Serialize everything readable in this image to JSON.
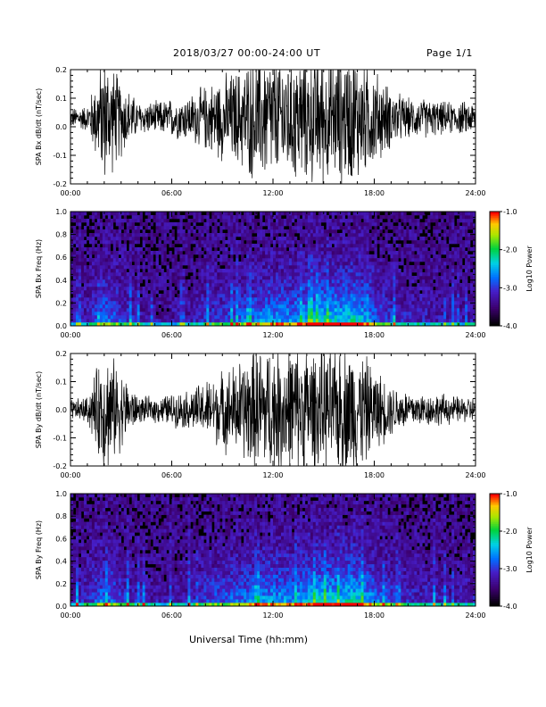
{
  "header": {
    "title": "2018/03/27  00:00-24:00 UT",
    "page": "Page 1/1"
  },
  "xlabel": "Universal Time (hh:mm)",
  "chart_data": [
    {
      "type": "line",
      "ylabel": "SPA Bx dB/dt (nT/sec)",
      "ylim": [
        -0.2,
        0.2
      ],
      "xlim": [
        "00:00",
        "24:00"
      ],
      "x_ticks": [
        "00:00",
        "06:00",
        "12:00",
        "18:00",
        "24:00"
      ],
      "y_ticks": [
        "0.2",
        "0.1",
        "0.0",
        "-0.1",
        "-0.2"
      ],
      "y_tick_values": [
        0.2,
        0.1,
        0.0,
        -0.1,
        -0.2
      ],
      "series": [
        {
          "hours": [
            0,
            1,
            2,
            3,
            4,
            5,
            6,
            7,
            8,
            9,
            10,
            11,
            12,
            13,
            14,
            15,
            16,
            17,
            18,
            19,
            20,
            21,
            22,
            23,
            24
          ],
          "amplitude": [
            0.03,
            0.04,
            0.2,
            0.12,
            0.05,
            0.05,
            0.06,
            0.07,
            0.1,
            0.13,
            0.15,
            0.2,
            0.2,
            0.2,
            0.2,
            0.2,
            0.2,
            0.2,
            0.15,
            0.09,
            0.06,
            0.06,
            0.05,
            0.05,
            0.05
          ],
          "offset": 0.03
        }
      ]
    },
    {
      "type": "heatmap",
      "ylabel": "SPA Bx Freq (Hz)",
      "ylim": [
        0.0,
        1.0
      ],
      "xlim": [
        "00:00",
        "24:00"
      ],
      "x_ticks": [
        "00:00",
        "06:00",
        "12:00",
        "18:00",
        "24:00"
      ],
      "y_ticks": [
        "1.0",
        "0.8",
        "0.6",
        "0.4",
        "0.2",
        "0.0"
      ],
      "y_tick_values": [
        1.0,
        0.8,
        0.6,
        0.4,
        0.2,
        0.0
      ],
      "colorbar": {
        "label": "Log10 Power",
        "range": [
          -4.0,
          -1.0
        ],
        "ticks": [
          "-1.0",
          "-2.0",
          "-3.0",
          "-4.0"
        ],
        "tick_values": [
          -1.0,
          -2.0,
          -3.0,
          -4.0
        ]
      },
      "activity_hours": [
        0,
        1,
        2,
        3,
        4,
        5,
        6,
        7,
        8,
        9,
        10,
        11,
        12,
        13,
        14,
        15,
        16,
        17,
        18,
        19,
        20,
        21,
        22,
        23,
        24
      ],
      "activity": [
        0.15,
        0.2,
        0.55,
        0.35,
        0.15,
        0.12,
        0.12,
        0.15,
        0.3,
        0.35,
        0.45,
        0.55,
        0.65,
        0.6,
        0.75,
        0.85,
        0.8,
        0.85,
        0.5,
        0.3,
        0.22,
        0.2,
        0.15,
        0.15,
        0.15
      ]
    },
    {
      "type": "line",
      "ylabel": "SPA By dB/dt (nT/sec)",
      "ylim": [
        -0.2,
        0.2
      ],
      "xlim": [
        "00:00",
        "24:00"
      ],
      "x_ticks": [
        "00:00",
        "06:00",
        "12:00",
        "18:00",
        "24:00"
      ],
      "y_ticks": [
        "0.2",
        "0.1",
        "0.0",
        "-0.1",
        "-0.2"
      ],
      "y_tick_values": [
        0.2,
        0.1,
        0.0,
        -0.1,
        -0.2
      ],
      "series": [
        {
          "hours": [
            0,
            1,
            2,
            3,
            4,
            5,
            6,
            7,
            8,
            9,
            10,
            11,
            12,
            13,
            14,
            15,
            16,
            17,
            18,
            19,
            20,
            21,
            22,
            23,
            24
          ],
          "amplitude": [
            0.03,
            0.04,
            0.2,
            0.12,
            0.04,
            0.04,
            0.05,
            0.06,
            0.09,
            0.12,
            0.15,
            0.2,
            0.2,
            0.2,
            0.2,
            0.18,
            0.2,
            0.2,
            0.13,
            0.08,
            0.06,
            0.05,
            0.05,
            0.04,
            0.04
          ],
          "offset": 0.0
        }
      ]
    },
    {
      "type": "heatmap",
      "ylabel": "SPA By Freq (Hz)",
      "ylim": [
        0.0,
        1.0
      ],
      "xlim": [
        "00:00",
        "24:00"
      ],
      "x_ticks": [
        "00:00",
        "06:00",
        "12:00",
        "18:00",
        "24:00"
      ],
      "y_ticks": [
        "1.0",
        "0.8",
        "0.6",
        "0.4",
        "0.2",
        "0.0"
      ],
      "y_tick_values": [
        1.0,
        0.8,
        0.6,
        0.4,
        0.2,
        0.0
      ],
      "colorbar": {
        "label": "Log10 Power",
        "range": [
          -4.0,
          -1.0
        ],
        "ticks": [
          "-1.0",
          "-2.0",
          "-3.0",
          "-4.0"
        ],
        "tick_values": [
          -1.0,
          -2.0,
          -3.0,
          -4.0
        ]
      },
      "activity_hours": [
        0,
        1,
        2,
        3,
        4,
        5,
        6,
        7,
        8,
        9,
        10,
        11,
        12,
        13,
        14,
        15,
        16,
        17,
        18,
        19,
        20,
        21,
        22,
        23,
        24
      ],
      "activity": [
        0.2,
        0.25,
        0.55,
        0.35,
        0.2,
        0.15,
        0.15,
        0.2,
        0.35,
        0.4,
        0.5,
        0.6,
        0.65,
        0.6,
        0.75,
        0.85,
        0.8,
        0.85,
        0.55,
        0.35,
        0.25,
        0.22,
        0.18,
        0.18,
        0.18
      ]
    }
  ]
}
